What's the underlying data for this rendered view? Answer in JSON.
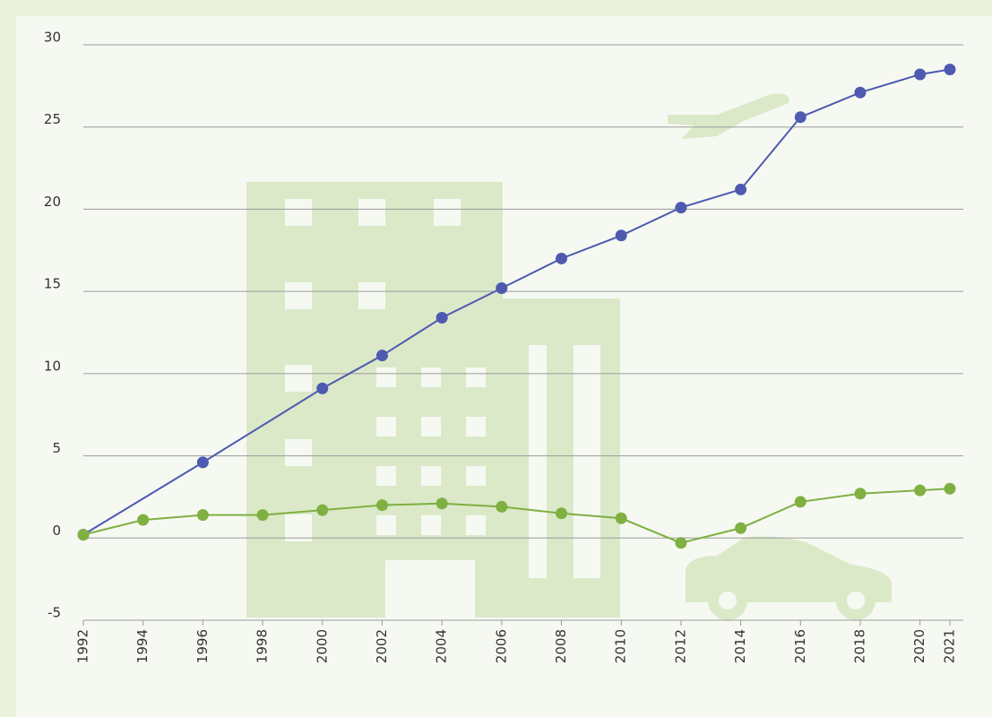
{
  "chart_data": {
    "type": "line",
    "xlim": [
      1992,
      2021
    ],
    "xticks": [
      1992,
      1994,
      1996,
      1998,
      2000,
      2002,
      2004,
      2006,
      2008,
      2010,
      2012,
      2014,
      2016,
      2018,
      2020,
      2021
    ],
    "ylim": [
      -5,
      30
    ],
    "yticks": [
      -5,
      0,
      5,
      10,
      15,
      20,
      25,
      30
    ],
    "grid": true,
    "series": [
      {
        "color": "#4e5ab0",
        "x": [
          1992,
          1996,
          2000,
          2002,
          2004,
          2006,
          2008,
          2010,
          2012,
          2014,
          2016,
          2018,
          2020,
          2021
        ],
        "values": [
          0.2,
          4.6,
          9.1,
          11.1,
          13.4,
          15.2,
          17.0,
          18.4,
          20.1,
          21.2,
          25.6,
          27.1,
          28.2,
          28.5
        ]
      },
      {
        "color": "#7fb041",
        "x": [
          1992,
          1994,
          1996,
          1998,
          2000,
          2002,
          2004,
          2006,
          2008,
          2010,
          2012,
          2014,
          2016,
          2018,
          2020,
          2021
        ],
        "values": [
          0.2,
          1.1,
          1.4,
          1.4,
          1.7,
          2.0,
          2.1,
          1.9,
          1.5,
          1.2,
          -0.3,
          0.6,
          2.2,
          2.7,
          2.9,
          3.0
        ]
      }
    ]
  }
}
